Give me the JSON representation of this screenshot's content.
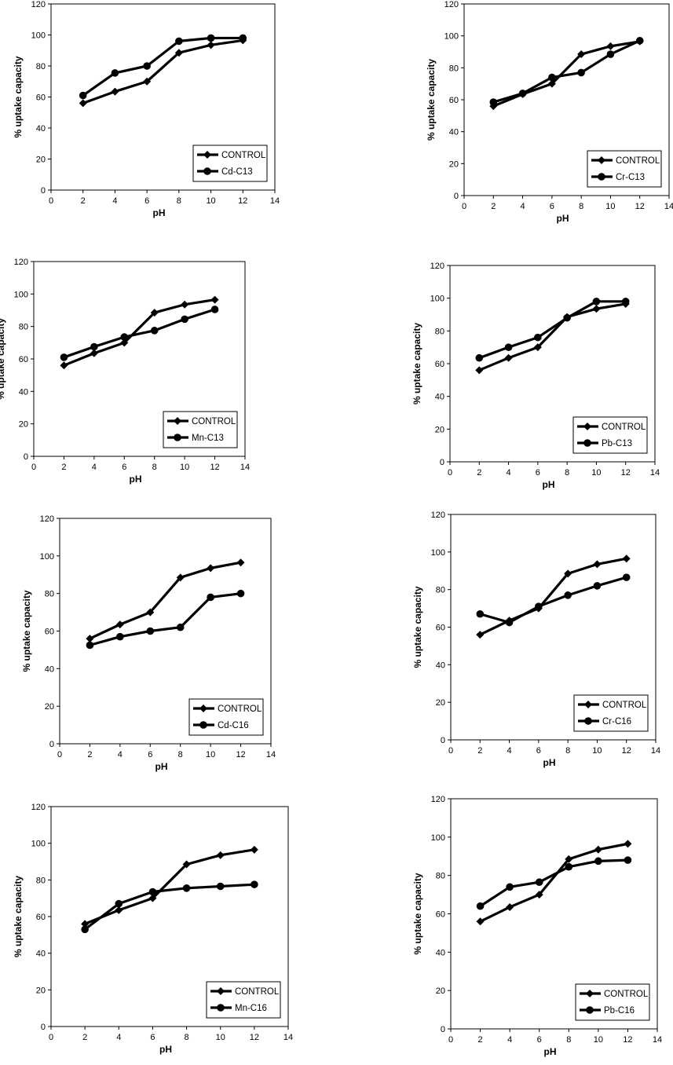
{
  "chart_data": [
    {
      "type": "line",
      "xlabel": "pH",
      "ylabel": "% uptake capacity",
      "xlim": [
        0,
        14
      ],
      "ylim": [
        0,
        120
      ],
      "xticks": [
        "0",
        "2",
        "4",
        "6",
        "8",
        "10",
        "12",
        "14"
      ],
      "yticks": [
        "0",
        "20",
        "40",
        "60",
        "80",
        "100",
        "120"
      ],
      "x": [
        2,
        4,
        6,
        8,
        10,
        12
      ],
      "series": [
        {
          "name": "CONTROL",
          "marker": "diamond",
          "values": [
            56,
            63.5,
            70,
            88.5,
            93.5,
            96.5
          ]
        },
        {
          "name": "Cd-C13",
          "marker": "circle",
          "values": [
            61,
            75.5,
            80,
            96,
            98,
            98
          ]
        }
      ],
      "legend": "bottom-right"
    },
    {
      "type": "line",
      "xlabel": "pH",
      "ylabel": "% uptake capacity",
      "xlim": [
        0,
        14
      ],
      "ylim": [
        0,
        120
      ],
      "xticks": [
        "0",
        "2",
        "4",
        "6",
        "8",
        "10",
        "12",
        "14"
      ],
      "yticks": [
        "0",
        "20",
        "40",
        "60",
        "80",
        "100",
        "120"
      ],
      "x": [
        2,
        4,
        6,
        8,
        10,
        12
      ],
      "series": [
        {
          "name": "CONTROL",
          "marker": "diamond",
          "values": [
            56,
            63.5,
            70,
            88.5,
            93.5,
            96.5
          ]
        },
        {
          "name": "Cr-C13",
          "marker": "circle",
          "values": [
            58.5,
            64,
            74,
            77,
            88.5,
            97
          ]
        }
      ],
      "legend": "bottom-right"
    },
    {
      "type": "line",
      "xlabel": "pH",
      "ylabel": "% uptake capacity",
      "xlim": [
        0,
        14
      ],
      "ylim": [
        0,
        120
      ],
      "xticks": [
        "0",
        "2",
        "4",
        "6",
        "8",
        "10",
        "12",
        "14"
      ],
      "yticks": [
        "0",
        "20",
        "40",
        "60",
        "80",
        "100",
        "120"
      ],
      "x": [
        2,
        4,
        6,
        8,
        10,
        12
      ],
      "series": [
        {
          "name": "CONTROL",
          "marker": "diamond",
          "values": [
            56,
            63.5,
            70,
            88.5,
            93.5,
            96.5
          ]
        },
        {
          "name": "Mn-C13",
          "marker": "circle",
          "values": [
            61,
            67.5,
            73.5,
            77.5,
            84.5,
            90.5
          ]
        }
      ],
      "legend": "bottom-right"
    },
    {
      "type": "line",
      "xlabel": "pH",
      "ylabel": "% uptake capacity",
      "xlim": [
        0,
        14
      ],
      "ylim": [
        0,
        120
      ],
      "xticks": [
        "0",
        "2",
        "4",
        "6",
        "8",
        "10",
        "12",
        "14"
      ],
      "yticks": [
        "0",
        "20",
        "40",
        "60",
        "80",
        "100",
        "120"
      ],
      "x": [
        2,
        4,
        6,
        8,
        10,
        12
      ],
      "series": [
        {
          "name": "CONTROL",
          "marker": "diamond",
          "values": [
            56,
            63.5,
            70,
            88.5,
            93.5,
            96.5
          ]
        },
        {
          "name": "Pb-C13",
          "marker": "circle",
          "values": [
            63.5,
            70,
            76,
            88,
            98,
            98
          ]
        }
      ],
      "legend": "bottom-right"
    },
    {
      "type": "line",
      "xlabel": "pH",
      "ylabel": "% uptake capacity",
      "xlim": [
        0,
        14
      ],
      "ylim": [
        0,
        120
      ],
      "xticks": [
        "0",
        "2",
        "4",
        "6",
        "8",
        "10",
        "12",
        "14"
      ],
      "yticks": [
        "0",
        "20",
        "40",
        "60",
        "80",
        "100",
        "120"
      ],
      "x": [
        2,
        4,
        6,
        8,
        10,
        12
      ],
      "series": [
        {
          "name": "CONTROL",
          "marker": "diamond",
          "values": [
            56,
            63.5,
            70,
            88.5,
            93.5,
            96.5
          ]
        },
        {
          "name": "Cd-C16",
          "marker": "circle",
          "values": [
            52.5,
            57,
            60,
            62,
            78,
            80
          ]
        }
      ],
      "legend": "bottom-right"
    },
    {
      "type": "line",
      "xlabel": "pH",
      "ylabel": "% uptake capacity",
      "xlim": [
        0,
        14
      ],
      "ylim": [
        0,
        120
      ],
      "xticks": [
        "0",
        "2",
        "4",
        "6",
        "8",
        "10",
        "12",
        "14"
      ],
      "yticks": [
        "0",
        "20",
        "40",
        "60",
        "80",
        "100",
        "120"
      ],
      "x": [
        2,
        4,
        6,
        8,
        10,
        12
      ],
      "series": [
        {
          "name": "CONTROL",
          "marker": "diamond",
          "values": [
            56,
            63.5,
            70,
            88.5,
            93.5,
            96.5
          ]
        },
        {
          "name": "Cr-C16",
          "marker": "circle",
          "values": [
            67,
            62.5,
            71,
            77,
            82,
            86.5
          ]
        }
      ],
      "legend": "bottom-right"
    },
    {
      "type": "line",
      "xlabel": "pH",
      "ylabel": "% uptake capacity",
      "xlim": [
        0,
        14
      ],
      "ylim": [
        0,
        120
      ],
      "xticks": [
        "0",
        "2",
        "4",
        "6",
        "8",
        "10",
        "12",
        "14"
      ],
      "yticks": [
        "0",
        "20",
        "40",
        "60",
        "80",
        "100",
        "120"
      ],
      "x": [
        2,
        4,
        6,
        8,
        10,
        12
      ],
      "series": [
        {
          "name": "CONTROL",
          "marker": "diamond",
          "values": [
            56,
            63.5,
            70,
            88.5,
            93.5,
            96.5
          ]
        },
        {
          "name": "Mn-C16",
          "marker": "circle",
          "values": [
            53,
            67,
            73.5,
            75.5,
            76.5,
            77.5
          ]
        }
      ],
      "legend": "bottom-right"
    },
    {
      "type": "line",
      "xlabel": "pH",
      "ylabel": "% uptake capacity",
      "xlim": [
        0,
        14
      ],
      "ylim": [
        0,
        120
      ],
      "xticks": [
        "0",
        "2",
        "4",
        "6",
        "8",
        "10",
        "12",
        "14"
      ],
      "yticks": [
        "0",
        "20",
        "40",
        "60",
        "80",
        "100",
        "120"
      ],
      "x": [
        2,
        4,
        6,
        8,
        10,
        12
      ],
      "series": [
        {
          "name": "CONTROL",
          "marker": "diamond",
          "values": [
            56,
            63.5,
            70,
            88.5,
            93.5,
            96.5
          ]
        },
        {
          "name": "Pb-C16",
          "marker": "circle",
          "values": [
            64,
            74,
            76.5,
            84.5,
            87.5,
            88
          ]
        }
      ],
      "legend": "bottom-right"
    }
  ],
  "colors": {
    "line": "#000000",
    "background": "#ffffff"
  }
}
